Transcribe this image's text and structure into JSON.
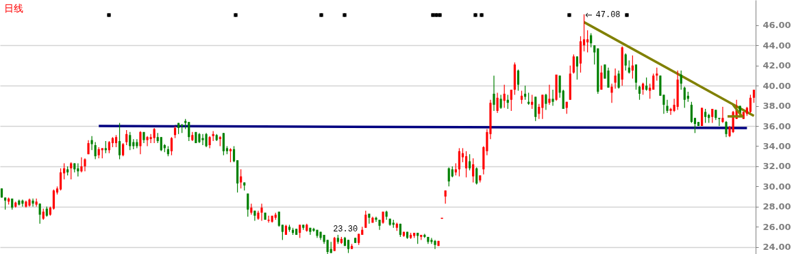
{
  "chart_data": {
    "type": "candlestick",
    "title": "日线",
    "categories": [
      null,
      null,
      null,
      null,
      null,
      null,
      null,
      null,
      null,
      null,
      null,
      null,
      null,
      null,
      null,
      null,
      null,
      null,
      null,
      null,
      null,
      null,
      null,
      null,
      null,
      null,
      null,
      null,
      null,
      null,
      null,
      null,
      null,
      null,
      null,
      null,
      null,
      null,
      null,
      null,
      null,
      null,
      null,
      null,
      null,
      null,
      null,
      null,
      null,
      null,
      null,
      null,
      null,
      null,
      null,
      null,
      null,
      null,
      null,
      null,
      null,
      null,
      null,
      null,
      null,
      null,
      null,
      null,
      null,
      null,
      null,
      null,
      null,
      null,
      null,
      null,
      null,
      null,
      null,
      null,
      null,
      null,
      null,
      null,
      null,
      null,
      null,
      null,
      null,
      null,
      null,
      null,
      null,
      null,
      null,
      null,
      null,
      null,
      null,
      null,
      null,
      null,
      null,
      null,
      null,
      null,
      null,
      null,
      null,
      null,
      null,
      null,
      null,
      null,
      null,
      null,
      null,
      null,
      null,
      null,
      null,
      null,
      null,
      null,
      null,
      null,
      null,
      null,
      null,
      null,
      null,
      null,
      null,
      null,
      null,
      null,
      null,
      null,
      null,
      null,
      null,
      null,
      null,
      null,
      null,
      null,
      null,
      null,
      null,
      null,
      null,
      null,
      null,
      null,
      null,
      null,
      null,
      null,
      null,
      null,
      null,
      null,
      null,
      null,
      null,
      null,
      null,
      null,
      null,
      null,
      null,
      null,
      null,
      null,
      null,
      null,
      null,
      null,
      null,
      null,
      null,
      null,
      null,
      null,
      null,
      null,
      null,
      null,
      null,
      null,
      null,
      null,
      null,
      null,
      null,
      null,
      null,
      null,
      null,
      null,
      null,
      null,
      null,
      null,
      null,
      null,
      null,
      null,
      null,
      null,
      null,
      null,
      null,
      null,
      null,
      null,
      null,
      null
    ],
    "ohlc": [
      [
        29.8,
        29.8,
        28.9,
        28.9
      ],
      [
        28.9,
        28.9,
        27.7,
        28.6
      ],
      [
        28.5,
        28.9,
        28.2,
        28.8
      ],
      [
        28.8,
        28.8,
        27.7,
        27.9
      ],
      [
        28.0,
        28.5,
        27.9,
        28.4
      ],
      [
        28.6,
        28.7,
        28.1,
        28.2
      ],
      [
        28.6,
        28.7,
        28.0,
        28.3
      ],
      [
        28.0,
        28.6,
        27.9,
        28.5
      ],
      [
        28.1,
        28.8,
        28.0,
        28.7
      ],
      [
        28.6,
        28.8,
        28.0,
        28.3
      ],
      [
        28.2,
        28.8,
        28.0,
        28.5
      ],
      [
        28.3,
        28.3,
        26.3,
        27.2
      ],
      [
        26.8,
        27.8,
        26.7,
        27.5
      ],
      [
        27.8,
        28.0,
        27.0,
        27.1
      ],
      [
        27.2,
        28.0,
        27.1,
        27.9
      ],
      [
        27.8,
        29.7,
        27.7,
        29.6
      ],
      [
        29.4,
        30.0,
        29.2,
        29.8
      ],
      [
        29.7,
        31.8,
        29.6,
        31.4
      ],
      [
        31.3,
        32.3,
        30.7,
        31.8
      ],
      [
        31.7,
        32.0,
        31.1,
        31.4
      ],
      [
        31.8,
        32.4,
        30.7,
        32.3
      ],
      [
        32.3,
        32.3,
        31.4,
        31.7
      ],
      [
        31.8,
        32.3,
        31.0,
        31.5
      ],
      [
        31.5,
        32.9,
        31.4,
        32.0
      ],
      [
        32.0,
        32.8,
        31.5,
        32.7
      ],
      [
        33.2,
        34.6,
        33.2,
        34.3
      ],
      [
        34.6,
        35.0,
        33.6,
        34.2
      ],
      [
        34.1,
        34.4,
        32.7,
        33.0
      ],
      [
        33.1,
        33.9,
        32.8,
        33.7
      ],
      [
        33.6,
        33.8,
        32.8,
        33.8
      ],
      [
        33.8,
        34.5,
        33.3,
        33.6
      ],
      [
        33.6,
        34.5,
        33.3,
        34.4
      ],
      [
        34.3,
        34.9,
        33.9,
        34.8
      ],
      [
        34.3,
        35.1,
        33.9,
        34.9
      ],
      [
        34.5,
        36.3,
        32.7,
        33.1
      ],
      [
        33.1,
        34.3,
        33.0,
        34.2
      ],
      [
        34.4,
        35.6,
        34.1,
        35.2
      ],
      [
        35.1,
        35.4,
        33.6,
        34.0
      ],
      [
        34.4,
        34.7,
        33.7,
        34.0
      ],
      [
        34.4,
        34.7,
        33.8,
        34.0
      ],
      [
        34.0,
        35.5,
        33.2,
        35.4
      ],
      [
        35.4,
        35.4,
        34.3,
        34.6
      ],
      [
        34.6,
        35.0,
        34.0,
        34.9
      ],
      [
        34.7,
        35.2,
        34.3,
        34.9
      ],
      [
        34.8,
        35.8,
        34.3,
        35.7
      ],
      [
        34.9,
        35.3,
        34.3,
        34.5
      ],
      [
        34.9,
        34.9,
        33.5,
        33.6
      ],
      [
        34.1,
        34.2,
        33.4,
        33.8
      ],
      [
        33.7,
        34.0,
        33.0,
        33.2
      ],
      [
        33.5,
        34.9,
        33.1,
        34.8
      ],
      [
        35.1,
        36.0,
        34.8,
        35.8
      ],
      [
        36.3,
        36.3,
        35.2,
        35.8
      ],
      [
        36.1,
        36.2,
        35.3,
        36.0
      ],
      [
        36.5,
        36.7,
        35.7,
        36.3
      ],
      [
        36.4,
        36.4,
        34.5,
        34.9
      ],
      [
        34.6,
        35.4,
        34.5,
        35.1
      ],
      [
        35.4,
        35.4,
        34.3,
        34.3
      ],
      [
        35.2,
        35.3,
        34.3,
        34.4
      ],
      [
        34.8,
        35.2,
        34.1,
        34.6
      ],
      [
        35.2,
        35.3,
        33.9,
        34.0
      ],
      [
        34.1,
        35.0,
        33.8,
        34.9
      ],
      [
        35.0,
        35.5,
        34.5,
        35.2
      ],
      [
        35.1,
        35.2,
        34.5,
        34.6
      ],
      [
        34.7,
        35.0,
        34.0,
        34.9
      ],
      [
        35.3,
        35.3,
        33.1,
        33.5
      ],
      [
        33.8,
        34.0,
        33.2,
        33.5
      ],
      [
        33.5,
        33.8,
        32.4,
        33.7
      ],
      [
        33.7,
        34.0,
        32.4,
        32.5
      ],
      [
        32.6,
        32.6,
        29.4,
        30.3
      ],
      [
        30.4,
        31.7,
        29.8,
        31.0
      ],
      [
        30.4,
        30.4,
        29.6,
        30.1
      ],
      [
        29.3,
        29.3,
        27.0,
        27.7
      ],
      [
        27.4,
        28.3,
        27.2,
        27.9
      ],
      [
        27.6,
        27.6,
        26.6,
        27.1
      ],
      [
        26.8,
        27.6,
        26.7,
        27.4
      ],
      [
        27.4,
        28.3,
        26.6,
        27.9
      ],
      [
        27.4,
        27.4,
        26.7,
        26.7
      ],
      [
        26.6,
        27.1,
        26.4,
        26.7
      ],
      [
        26.5,
        27.1,
        26.4,
        27.1
      ],
      [
        26.9,
        27.4,
        26.7,
        27.2
      ],
      [
        27.5,
        27.5,
        26.0,
        26.1
      ],
      [
        26.2,
        26.2,
        24.7,
        25.5
      ],
      [
        25.2,
        26.2,
        25.2,
        26.1
      ],
      [
        26.0,
        26.2,
        25.5,
        25.7
      ],
      [
        25.7,
        25.9,
        25.2,
        25.4
      ],
      [
        25.8,
        25.8,
        25.2,
        25.2
      ],
      [
        25.4,
        26.2,
        24.9,
        26.2
      ],
      [
        26.2,
        26.2,
        25.7,
        25.9
      ],
      [
        25.6,
        26.3,
        25.5,
        26.2
      ],
      [
        25.9,
        25.9,
        25.2,
        25.5
      ],
      [
        25.8,
        25.9,
        25.5,
        25.6
      ],
      [
        25.7,
        25.7,
        24.9,
        25.1
      ],
      [
        25.5,
        25.5,
        24.7,
        24.9
      ],
      [
        25.2,
        25.2,
        24.3,
        24.5
      ],
      [
        24.7,
        24.7,
        23.3,
        23.5
      ],
      [
        23.8,
        24.5,
        23.4,
        23.4
      ],
      [
        23.6,
        25.0,
        23.6,
        24.9
      ],
      [
        24.9,
        25.2,
        24.3,
        24.5
      ],
      [
        24.4,
        25.0,
        24.3,
        24.8
      ],
      [
        24.9,
        25.0,
        24.1,
        24.1
      ],
      [
        24.7,
        24.7,
        23.4,
        23.8
      ],
      [
        23.8,
        24.3,
        23.8,
        24.1
      ],
      [
        24.9,
        24.9,
        24.4,
        24.4
      ],
      [
        24.4,
        25.3,
        24.2,
        25.3
      ],
      [
        25.2,
        26.0,
        25.2,
        25.7
      ],
      [
        25.9,
        27.6,
        25.9,
        27.2
      ],
      [
        27.3,
        27.3,
        26.3,
        26.9
      ],
      [
        26.4,
        27.0,
        26.4,
        26.9
      ],
      [
        26.9,
        27.0,
        26.5,
        26.7
      ],
      [
        26.7,
        26.7,
        25.7,
        26.1
      ],
      [
        26.4,
        27.5,
        26.3,
        27.5
      ],
      [
        27.5,
        27.6,
        26.7,
        27.0
      ],
      [
        26.8,
        26.8,
        26.1,
        26.2
      ],
      [
        26.4,
        26.7,
        25.9,
        26.2
      ],
      [
        25.9,
        26.4,
        25.6,
        26.3
      ],
      [
        26.3,
        26.3,
        25.0,
        25.2
      ],
      [
        25.1,
        25.5,
        25.0,
        25.5
      ],
      [
        25.5,
        25.5,
        24.8,
        24.9
      ],
      [
        24.9,
        25.4,
        24.8,
        25.2
      ],
      [
        25.1,
        25.4,
        24.9,
        25.4
      ],
      [
        25.4,
        25.4,
        24.3,
        25.1
      ],
      [
        25.0,
        25.2,
        24.7,
        25.2
      ],
      [
        25.2,
        25.3,
        24.9,
        25.0
      ],
      [
        25.0,
        25.0,
        24.3,
        24.5
      ],
      [
        24.7,
        24.9,
        24.3,
        24.5
      ],
      [
        24.6,
        24.7,
        23.8,
        24.2
      ],
      [
        24.1,
        24.6,
        24.1,
        24.6
      ],
      [
        26.8,
        26.9,
        26.8,
        26.9
      ],
      [
        29.0,
        29.6,
        28.3,
        29.6
      ],
      [
        31.8,
        31.9,
        30.0,
        30.5
      ],
      [
        31.7,
        32.0,
        30.9,
        31.0
      ],
      [
        31.4,
        32.3,
        31.1,
        31.7
      ],
      [
        31.7,
        33.8,
        31.0,
        33.5
      ],
      [
        32.9,
        33.8,
        32.4,
        33.3
      ],
      [
        31.8,
        33.5,
        30.9,
        33.0
      ],
      [
        32.5,
        33.2,
        31.6,
        31.8
      ],
      [
        31.0,
        32.8,
        30.4,
        32.2
      ],
      [
        31.8,
        31.9,
        30.2,
        30.3
      ],
      [
        30.6,
        31.1,
        30.4,
        31.1
      ],
      [
        31.7,
        34.0,
        31.2,
        33.9
      ],
      [
        33.5,
        35.7,
        33.1,
        35.4
      ],
      [
        35.2,
        38.6,
        34.7,
        38.3
      ],
      [
        39.2,
        41.0,
        37.5,
        38.1
      ],
      [
        37.5,
        39.3,
        37.3,
        38.8
      ],
      [
        38.7,
        39.1,
        37.7,
        37.8
      ],
      [
        38.5,
        40.1,
        37.8,
        39.2
      ],
      [
        38.6,
        39.1,
        37.7,
        38.3
      ],
      [
        38.6,
        39.6,
        37.5,
        39.6
      ],
      [
        39.6,
        42.3,
        39.1,
        42.1
      ],
      [
        41.5,
        41.6,
        39.5,
        40.1
      ],
      [
        38.6,
        39.5,
        38.2,
        39.0
      ],
      [
        39.2,
        40.0,
        38.6,
        38.9
      ],
      [
        38.4,
        39.3,
        38.1,
        38.2
      ],
      [
        38.1,
        39.1,
        37.7,
        38.4
      ],
      [
        38.9,
        38.9,
        36.5,
        36.9
      ],
      [
        37.2,
        38.2,
        36.7,
        37.9
      ],
      [
        37.8,
        39.1,
        36.7,
        39.1
      ],
      [
        39.1,
        39.2,
        37.6,
        38.2
      ],
      [
        38.3,
        40.1,
        38.1,
        38.7
      ],
      [
        38.7,
        39.6,
        38.0,
        38.4
      ],
      [
        38.6,
        41.1,
        38.5,
        41.1
      ],
      [
        41.0,
        41.0,
        38.8,
        39.3
      ],
      [
        39.5,
        39.6,
        37.7,
        37.7
      ],
      [
        37.8,
        38.4,
        37.2,
        38.4
      ],
      [
        38.6,
        42.0,
        38.6,
        41.2
      ],
      [
        41.3,
        43.1,
        41.2,
        42.9
      ],
      [
        42.9,
        42.9,
        40.6,
        41.9
      ],
      [
        42.2,
        44.9,
        41.3,
        44.4
      ],
      [
        44.0,
        47.08,
        43.4,
        44.6
      ],
      [
        44.3,
        45.5,
        43.3,
        44.6
      ],
      [
        45.0,
        45.2,
        43.8,
        44.2
      ],
      [
        44.0,
        44.0,
        42.1,
        43.3
      ],
      [
        43.7,
        43.7,
        39.2,
        39.4
      ],
      [
        39.6,
        42.0,
        39.6,
        41.3
      ],
      [
        42.1,
        42.1,
        40.7,
        40.7
      ],
      [
        41.5,
        41.8,
        39.8,
        39.8
      ],
      [
        39.3,
        40.2,
        38.3,
        39.9
      ],
      [
        40.3,
        41.7,
        39.7,
        41.0
      ],
      [
        41.2,
        41.5,
        39.7,
        39.8
      ],
      [
        40.6,
        43.9,
        40.0,
        43.8
      ],
      [
        43.1,
        43.2,
        41.5,
        42.0
      ],
      [
        41.8,
        42.5,
        41.2,
        41.3
      ],
      [
        41.5,
        43.0,
        40.7,
        42.0
      ],
      [
        42.1,
        42.1,
        39.6,
        40.3
      ],
      [
        39.9,
        40.0,
        38.6,
        39.2
      ],
      [
        39.6,
        40.3,
        39.1,
        40.2
      ],
      [
        40.0,
        40.8,
        39.5,
        39.6
      ],
      [
        39.5,
        40.2,
        38.7,
        39.8
      ],
      [
        39.6,
        41.2,
        39.6,
        41.0
      ],
      [
        41.0,
        41.8,
        40.5,
        41.2
      ],
      [
        41.0,
        41.0,
        39.0,
        39.0
      ],
      [
        39.1,
        39.1,
        37.2,
        38.1
      ],
      [
        38.0,
        38.6,
        37.3,
        37.5
      ],
      [
        37.5,
        37.8,
        37.1,
        37.7
      ],
      [
        37.5,
        38.7,
        37.4,
        38.1
      ],
      [
        37.9,
        41.5,
        37.6,
        40.6
      ],
      [
        41.1,
        41.5,
        39.6,
        40.2
      ],
      [
        39.8,
        39.9,
        37.8,
        38.6
      ],
      [
        39.0,
        39.4,
        38.4,
        38.7
      ],
      [
        38.1,
        38.4,
        36.3,
        36.4
      ],
      [
        36.8,
        36.8,
        35.3,
        36.2
      ],
      [
        36.4,
        36.4,
        36.0,
        36.0
      ],
      [
        36.0,
        37.8,
        36.0,
        37.8
      ],
      [
        37.4,
        37.7,
        36.3,
        36.9
      ],
      [
        37.1,
        37.2,
        36.3,
        36.8
      ],
      [
        36.9,
        37.7,
        36.3,
        37.7
      ],
      [
        37.6,
        37.6,
        36.6,
        36.8
      ],
      [
        36.8,
        36.8,
        36.0,
        36.7
      ],
      [
        36.4,
        37.9,
        36.3,
        36.8
      ],
      [
        36.4,
        36.5,
        34.9,
        35.2
      ],
      [
        35.0,
        36.0,
        34.9,
        35.9
      ],
      [
        35.4,
        37.5,
        35.3,
        37.4
      ],
      [
        36.7,
        38.6,
        36.7,
        37.6
      ],
      [
        38.0,
        38.0,
        37.2,
        37.2
      ],
      [
        36.7,
        37.4,
        36.7,
        37.4
      ],
      [
        37.2,
        37.9,
        37.0,
        37.8
      ],
      [
        37.4,
        39.1,
        37.3,
        38.8
      ],
      [
        38.8,
        39.6,
        38.3,
        39.6
      ]
    ],
    "series": [
      {
        "type": "line",
        "color": "#000080",
        "values": [
          null,
          null,
          null,
          null,
          null,
          null,
          null,
          null,
          null,
          null,
          null,
          null,
          null,
          null,
          null,
          null,
          null,
          null,
          null,
          null,
          null,
          null,
          null,
          null,
          null,
          null,
          null,
          null,
          36.0,
          null,
          null,
          null,
          null,
          null,
          null,
          null,
          null,
          null,
          null,
          null,
          null,
          null,
          null,
          null,
          null,
          null,
          null,
          null,
          null,
          null,
          null,
          null,
          null,
          null,
          null,
          null,
          null,
          null,
          null,
          null,
          null,
          null,
          null,
          null,
          null,
          null,
          null,
          null,
          null,
          null,
          null,
          null,
          null,
          null,
          null,
          null,
          null,
          null,
          null,
          null,
          null,
          null,
          null,
          null,
          null,
          null,
          null,
          null,
          null,
          null,
          null,
          null,
          null,
          null,
          null,
          null,
          null,
          null,
          null,
          null,
          null,
          null,
          null,
          null,
          null,
          null,
          null,
          null,
          null,
          null,
          null,
          null,
          null,
          null,
          null,
          null,
          null,
          null,
          null,
          null,
          null,
          null,
          null,
          null,
          null,
          null,
          null,
          null,
          null,
          null,
          null,
          null,
          null,
          null,
          null,
          null,
          null,
          null,
          null,
          null,
          null,
          null,
          null,
          null,
          null,
          null,
          null,
          null,
          null,
          null,
          null,
          null,
          null,
          null,
          null,
          null,
          null,
          null,
          null,
          null,
          null,
          null,
          null,
          null,
          null,
          null,
          null,
          null,
          null,
          null,
          null,
          null,
          null,
          null,
          null,
          null,
          null,
          null,
          null,
          null,
          null,
          null,
          null,
          null,
          null,
          null,
          null,
          null,
          null,
          null,
          null,
          null,
          null,
          null,
          null,
          null,
          null,
          null,
          null,
          null,
          null,
          null,
          null,
          null,
          null,
          null,
          null,
          null,
          null,
          null,
          null,
          null,
          null,
          null,
          null,
          35.8,
          null,
          null
        ]
      },
      {
        "type": "line",
        "color": "#808000",
        "values": [
          null,
          null,
          null,
          null,
          null,
          null,
          null,
          null,
          null,
          null,
          null,
          null,
          null,
          null,
          null,
          null,
          null,
          null,
          null,
          null,
          null,
          null,
          null,
          null,
          null,
          null,
          null,
          null,
          null,
          null,
          null,
          null,
          null,
          null,
          null,
          null,
          null,
          null,
          null,
          null,
          null,
          null,
          null,
          null,
          null,
          null,
          null,
          null,
          null,
          null,
          null,
          null,
          null,
          null,
          null,
          null,
          null,
          null,
          null,
          null,
          null,
          null,
          null,
          null,
          null,
          null,
          null,
          null,
          null,
          null,
          null,
          null,
          null,
          null,
          null,
          null,
          null,
          null,
          null,
          null,
          null,
          null,
          null,
          null,
          null,
          null,
          null,
          null,
          null,
          null,
          null,
          null,
          null,
          null,
          null,
          null,
          null,
          null,
          null,
          null,
          null,
          null,
          null,
          null,
          null,
          null,
          null,
          null,
          null,
          null,
          null,
          null,
          null,
          null,
          null,
          null,
          null,
          null,
          null,
          null,
          null,
          null,
          null,
          null,
          null,
          null,
          null,
          null,
          null,
          null,
          null,
          null,
          null,
          null,
          null,
          null,
          null,
          null,
          null,
          null,
          null,
          null,
          null,
          null,
          null,
          null,
          null,
          null,
          null,
          null,
          null,
          null,
          null,
          null,
          null,
          null,
          null,
          null,
          null,
          null,
          null,
          null,
          null,
          null,
          null,
          null,
          null,
          null,
          46.3,
          null,
          null,
          null,
          null,
          null,
          null,
          null,
          null,
          null,
          null,
          null,
          null,
          null,
          null,
          null,
          null,
          null,
          null,
          null,
          null,
          null,
          null,
          null,
          null,
          null,
          null,
          null,
          null,
          null,
          null,
          null,
          null,
          null,
          null,
          null,
          null,
          null,
          null,
          null,
          null,
          null,
          null,
          null,
          null,
          null,
          null,
          null,
          null,
          37.0
        ]
      }
    ],
    "annotations": [
      "47.08",
      "23.30"
    ],
    "ylim": [
      23.3,
      48.5
    ],
    "yticks": [
      {
        "value": 24,
        "label": "24.00"
      },
      {
        "value": 26,
        "label": "26.00"
      },
      {
        "value": 28,
        "label": "28.00"
      },
      {
        "value": 30,
        "label": "30.00"
      },
      {
        "value": 32,
        "label": "32.00"
      },
      {
        "value": 34,
        "label": "34.00"
      },
      {
        "value": 36,
        "label": "36.00"
      },
      {
        "value": 38,
        "label": "38.00"
      },
      {
        "value": 40,
        "label": "40.00"
      },
      {
        "value": 42,
        "label": "42.00"
      },
      {
        "value": 44,
        "label": "44.00"
      },
      {
        "value": 46,
        "label": "46.00"
      }
    ],
    "grid": "y",
    "tick_labels": "y"
  }
}
